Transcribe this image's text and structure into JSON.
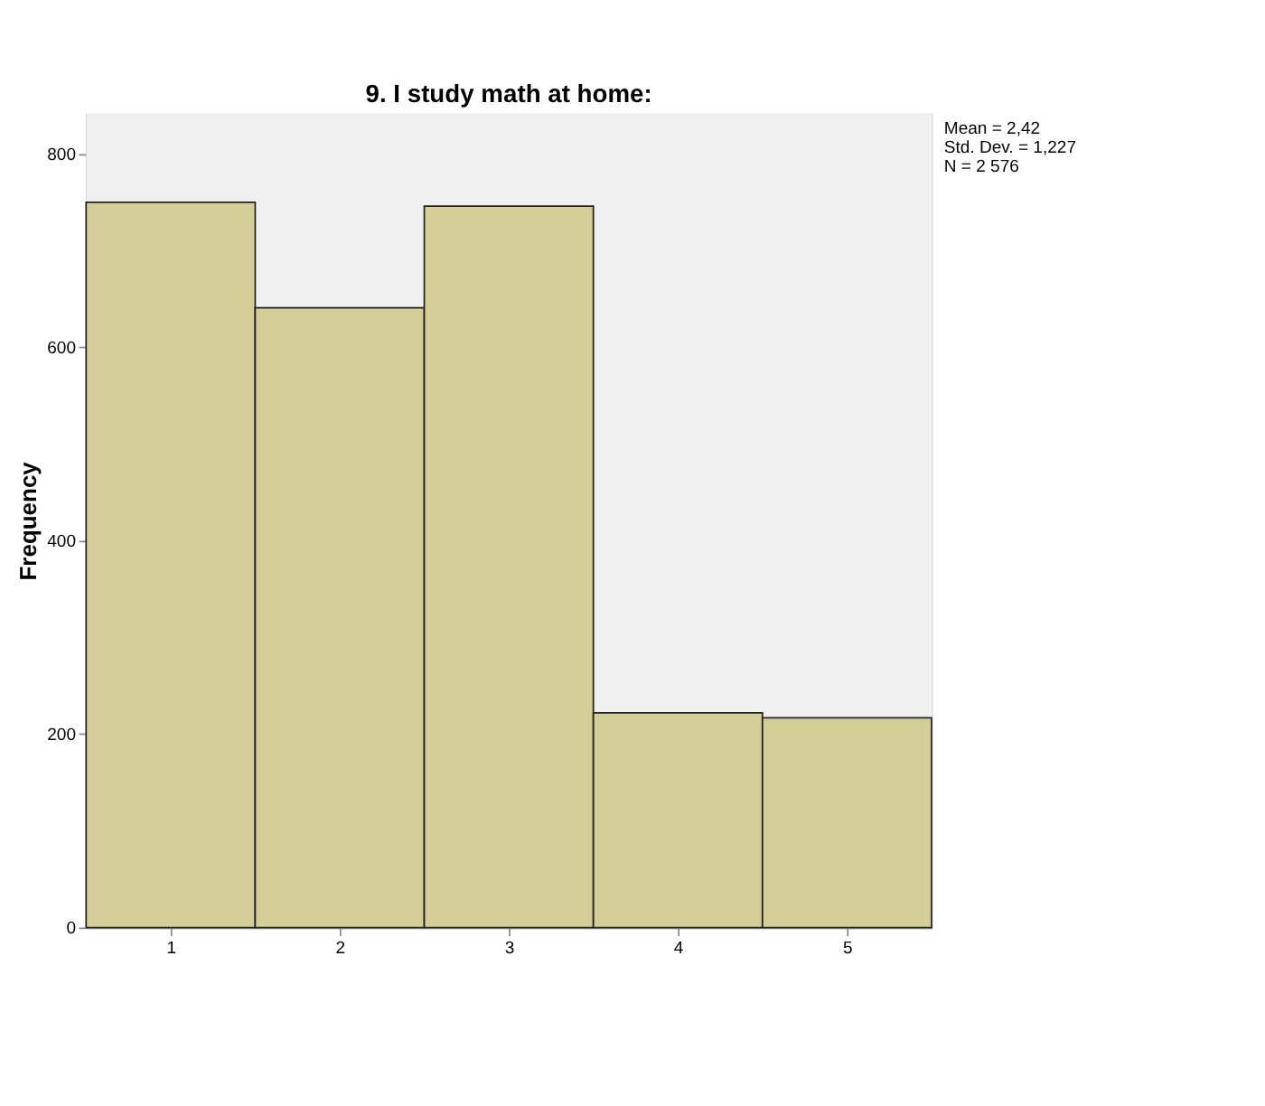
{
  "chart_data": {
    "type": "histogram",
    "title": "9. I study math at home:",
    "ylabel": "Frequency",
    "bins": [
      0.5,
      1.5,
      2.5,
      3.5,
      4.5,
      5.5
    ],
    "values": [
      750,
      641,
      746,
      222,
      217
    ],
    "color": "#d3ce97",
    "xlim": [
      0.5,
      5.5
    ],
    "xticks": [
      1,
      2,
      3,
      4,
      5
    ],
    "ylim": [
      0,
      842
    ],
    "yticks": [
      0,
      200,
      400,
      600,
      800
    ],
    "annotations": [
      "Mean = 2,42",
      "Std. Dev. = 1,227",
      "N = 2 576"
    ]
  }
}
